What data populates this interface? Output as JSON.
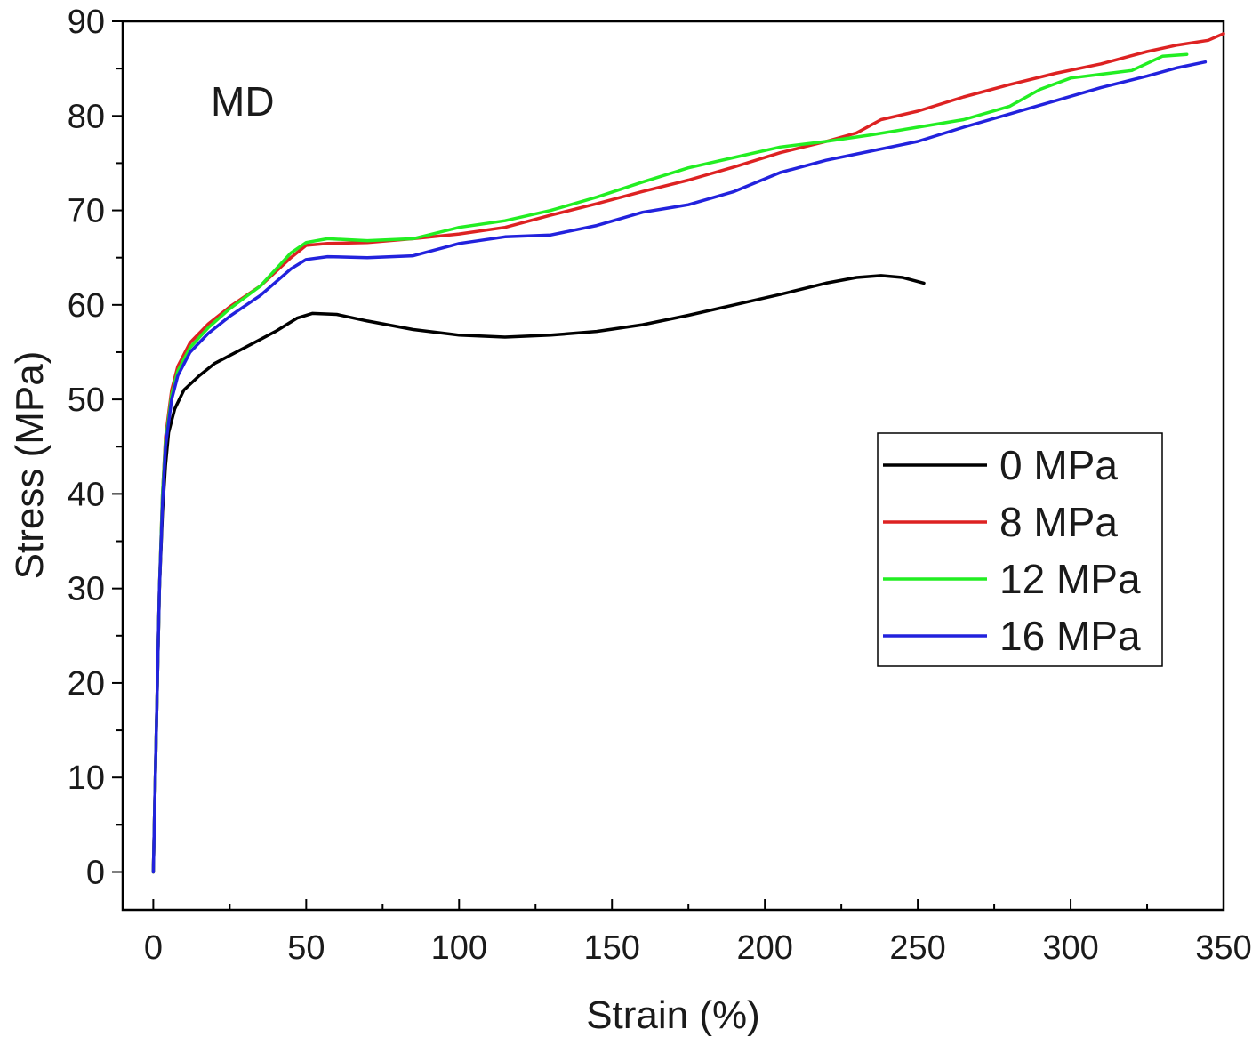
{
  "chart_data": {
    "type": "line",
    "annotation": "MD",
    "xlabel": "Strain (%)",
    "ylabel": "Stress (MPa)",
    "xlim": [
      -10,
      350
    ],
    "ylim": [
      -4,
      90
    ],
    "xticks": [
      0,
      50,
      100,
      150,
      200,
      250,
      300,
      350
    ],
    "yticks": [
      0,
      10,
      20,
      30,
      40,
      50,
      60,
      70,
      80,
      90
    ],
    "x_minor_step": 25,
    "y_minor_step": 5,
    "grid": false,
    "legend_position": "right",
    "series": [
      {
        "name": "0 MPa",
        "color": "#000000",
        "points": [
          [
            0,
            0
          ],
          [
            1,
            15
          ],
          [
            2,
            30
          ],
          [
            3,
            38
          ],
          [
            4,
            43
          ],
          [
            5,
            46.5
          ],
          [
            7,
            49
          ],
          [
            10,
            51
          ],
          [
            15,
            52.5
          ],
          [
            20,
            53.8
          ],
          [
            30,
            55.5
          ],
          [
            40,
            57.2
          ],
          [
            47,
            58.6
          ],
          [
            52,
            59.1
          ],
          [
            60,
            59
          ],
          [
            70,
            58.3
          ],
          [
            85,
            57.4
          ],
          [
            100,
            56.8
          ],
          [
            115,
            56.6
          ],
          [
            130,
            56.8
          ],
          [
            145,
            57.2
          ],
          [
            160,
            57.9
          ],
          [
            175,
            58.9
          ],
          [
            190,
            60
          ],
          [
            205,
            61.1
          ],
          [
            220,
            62.3
          ],
          [
            230,
            62.9
          ],
          [
            238,
            63.1
          ],
          [
            245,
            62.9
          ],
          [
            252,
            62.3
          ]
        ]
      },
      {
        "name": "8 MPa",
        "color": "#dd2222",
        "points": [
          [
            0,
            0
          ],
          [
            1,
            15
          ],
          [
            2,
            30
          ],
          [
            3,
            40
          ],
          [
            4,
            46
          ],
          [
            6,
            51
          ],
          [
            8,
            53.5
          ],
          [
            12,
            56
          ],
          [
            18,
            58
          ],
          [
            25,
            59.8
          ],
          [
            35,
            62
          ],
          [
            45,
            65
          ],
          [
            50,
            66.3
          ],
          [
            57,
            66.5
          ],
          [
            70,
            66.6
          ],
          [
            85,
            67
          ],
          [
            100,
            67.5
          ],
          [
            115,
            68.2
          ],
          [
            130,
            69.5
          ],
          [
            145,
            70.7
          ],
          [
            160,
            72
          ],
          [
            175,
            73.2
          ],
          [
            190,
            74.6
          ],
          [
            205,
            76.1
          ],
          [
            220,
            77.3
          ],
          [
            230,
            78.2
          ],
          [
            238,
            79.6
          ],
          [
            250,
            80.5
          ],
          [
            265,
            82
          ],
          [
            280,
            83.3
          ],
          [
            295,
            84.5
          ],
          [
            310,
            85.5
          ],
          [
            325,
            86.8
          ],
          [
            335,
            87.5
          ],
          [
            345,
            88
          ],
          [
            350,
            88.7
          ]
        ]
      },
      {
        "name": "12 MPa",
        "color": "#22ee22",
        "points": [
          [
            0,
            0
          ],
          [
            1,
            15
          ],
          [
            2,
            30
          ],
          [
            3,
            40
          ],
          [
            4,
            45.5
          ],
          [
            6,
            50.5
          ],
          [
            8,
            53
          ],
          [
            12,
            55.5
          ],
          [
            18,
            57.6
          ],
          [
            25,
            59.6
          ],
          [
            35,
            62
          ],
          [
            45,
            65.5
          ],
          [
            50,
            66.6
          ],
          [
            57,
            67
          ],
          [
            70,
            66.8
          ],
          [
            85,
            67
          ],
          [
            100,
            68.2
          ],
          [
            115,
            68.9
          ],
          [
            130,
            70
          ],
          [
            145,
            71.4
          ],
          [
            160,
            73
          ],
          [
            175,
            74.5
          ],
          [
            190,
            75.6
          ],
          [
            205,
            76.7
          ],
          [
            220,
            77.3
          ],
          [
            235,
            78
          ],
          [
            250,
            78.8
          ],
          [
            265,
            79.6
          ],
          [
            280,
            81
          ],
          [
            290,
            82.8
          ],
          [
            300,
            84
          ],
          [
            310,
            84.4
          ],
          [
            320,
            84.8
          ],
          [
            330,
            86.3
          ],
          [
            338,
            86.5
          ]
        ]
      },
      {
        "name": "16 MPa",
        "color": "#2222dd",
        "points": [
          [
            0,
            0
          ],
          [
            1,
            15
          ],
          [
            2,
            30
          ],
          [
            3,
            39
          ],
          [
            4,
            45
          ],
          [
            6,
            50
          ],
          [
            8,
            52.5
          ],
          [
            12,
            55
          ],
          [
            18,
            57
          ],
          [
            25,
            58.8
          ],
          [
            35,
            61
          ],
          [
            45,
            63.8
          ],
          [
            50,
            64.8
          ],
          [
            57,
            65.1
          ],
          [
            70,
            65
          ],
          [
            85,
            65.2
          ],
          [
            100,
            66.5
          ],
          [
            115,
            67.2
          ],
          [
            130,
            67.4
          ],
          [
            145,
            68.4
          ],
          [
            160,
            69.8
          ],
          [
            175,
            70.6
          ],
          [
            190,
            72
          ],
          [
            205,
            74
          ],
          [
            220,
            75.3
          ],
          [
            235,
            76.3
          ],
          [
            250,
            77.3
          ],
          [
            265,
            78.8
          ],
          [
            280,
            80.2
          ],
          [
            295,
            81.6
          ],
          [
            310,
            83
          ],
          [
            325,
            84.2
          ],
          [
            335,
            85.1
          ],
          [
            344,
            85.7
          ]
        ]
      }
    ]
  }
}
